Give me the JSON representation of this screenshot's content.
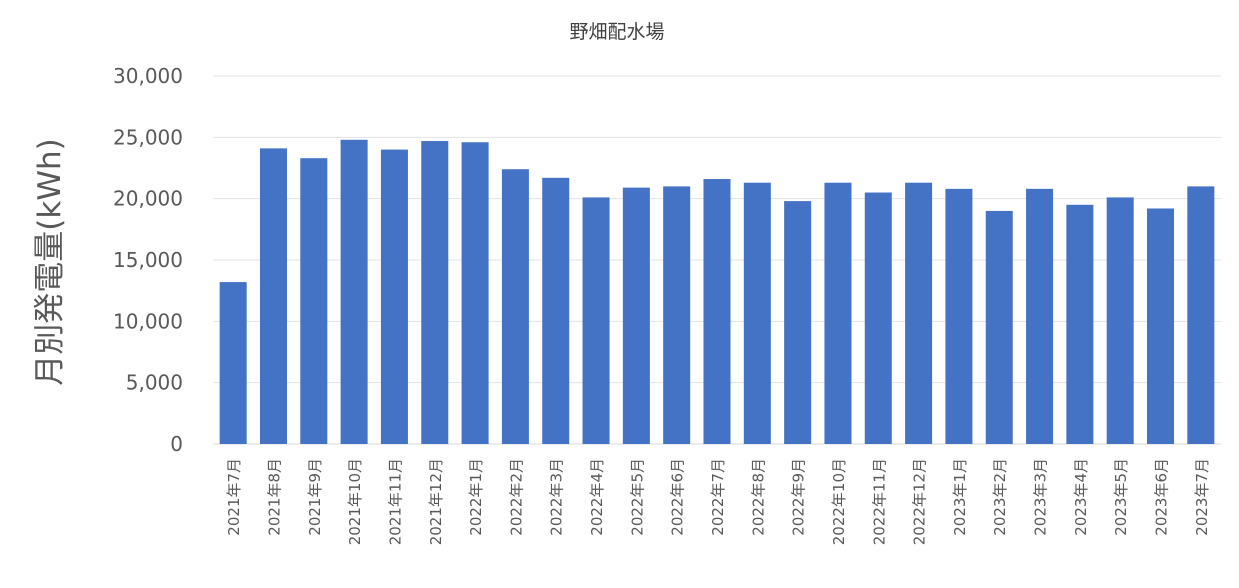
{
  "chart_data": {
    "type": "bar",
    "title": "野畑配水場",
    "xlabel": "",
    "ylabel": "月別発電量(kWh)",
    "ylim": [
      0,
      30000
    ],
    "yticks": [
      "0",
      "5,000",
      "10,000",
      "15,000",
      "20,000",
      "25,000",
      "30,000"
    ],
    "grid": true,
    "legend": "none",
    "bar_color": "#4472C4",
    "categories": [
      "2021年7月",
      "2021年8月",
      "2021年9月",
      "2021年10月",
      "2021年11月",
      "2021年12月",
      "2022年1月",
      "2022年2月",
      "2022年3月",
      "2022年4月",
      "2022年5月",
      "2022年6月",
      "2022年7月",
      "2022年8月",
      "2022年9月",
      "2022年10月",
      "2022年11月",
      "2022年12月",
      "2023年1月",
      "2023年2月",
      "2023年3月",
      "2023年4月",
      "2023年5月",
      "2023年6月",
      "2023年7月"
    ],
    "values": [
      13200,
      24100,
      23300,
      24800,
      24000,
      24700,
      24600,
      22400,
      21700,
      20100,
      20900,
      21000,
      21600,
      21300,
      19800,
      21300,
      20500,
      21300,
      20800,
      19000,
      20800,
      19500,
      20100,
      19200,
      21000
    ]
  }
}
